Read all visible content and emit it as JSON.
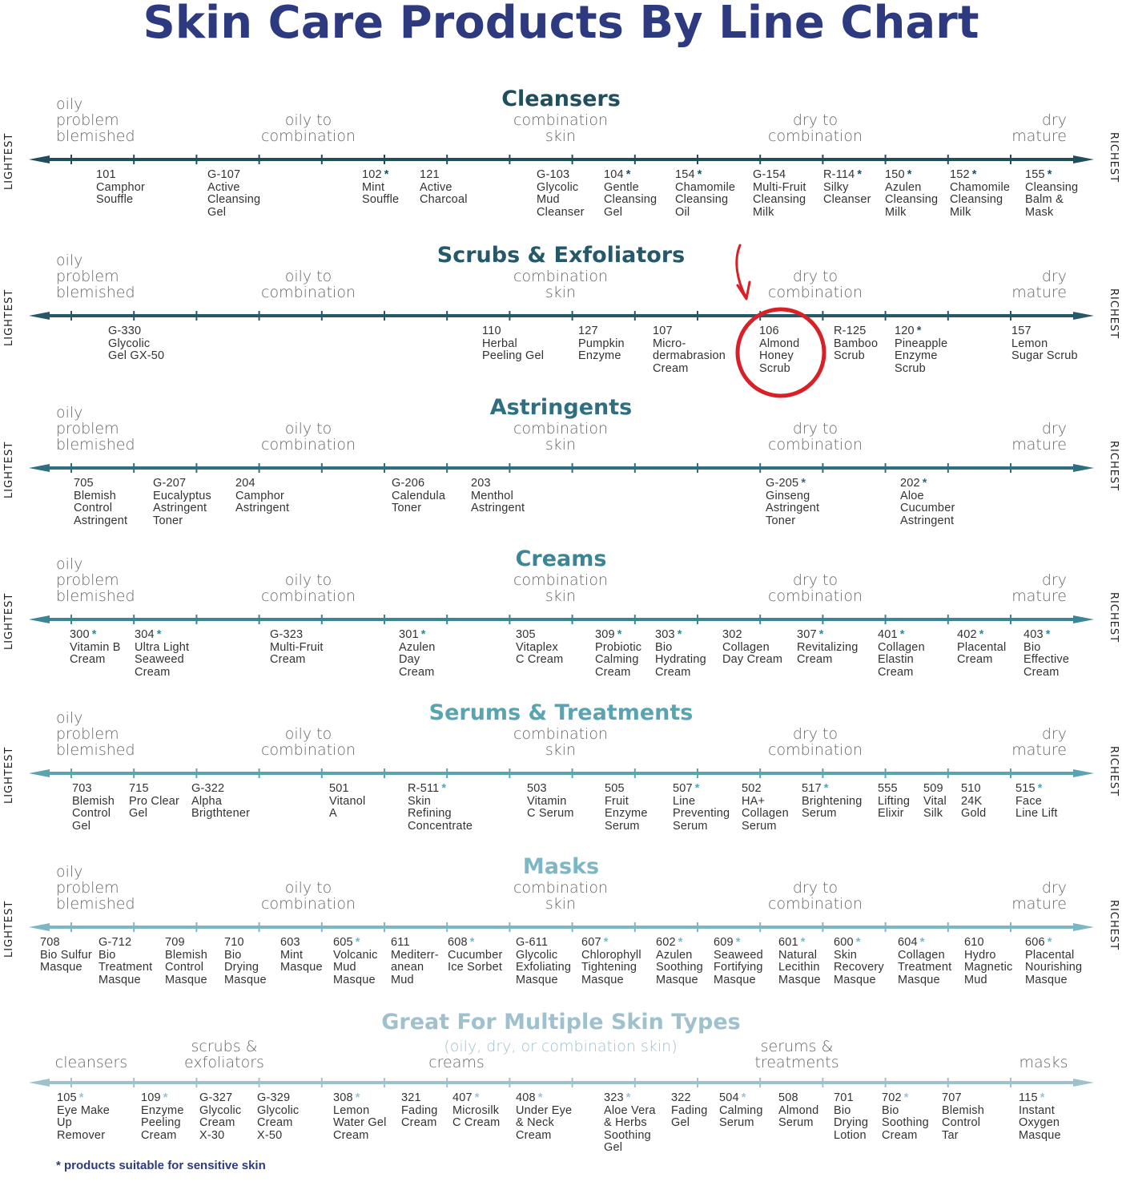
{
  "title": "Skin Care Products By Line Chart",
  "axis_labels": {
    "left": "LIGHTEST",
    "right": "RICHEST"
  },
  "skin_labels": {
    "oily": [
      "oily",
      "problem",
      "blemished"
    ],
    "oily_comb": [
      "oily to",
      "combination"
    ],
    "comb": [
      "combination",
      "skin"
    ],
    "dry_comb": [
      "dry to",
      "combination"
    ],
    "dry": [
      "dry",
      "mature"
    ]
  },
  "sections": [
    {
      "title": "Cleansers",
      "color": "#1f4f5d",
      "products": [
        {
          "code": "101",
          "star": "",
          "lines": [
            "Camphor",
            "Souffle"
          ]
        },
        {
          "code": "G-107",
          "star": "",
          "lines": [
            "Active",
            "Cleansing",
            "Gel"
          ]
        },
        {
          "code": "102",
          "star": "*",
          "lines": [
            "Mint",
            "Souffle"
          ]
        },
        {
          "code": "121",
          "star": "",
          "lines": [
            "Active",
            "Charcoal"
          ]
        },
        {
          "code": "G-103",
          "star": "",
          "lines": [
            "Glycolic",
            "Mud",
            "Cleanser"
          ]
        },
        {
          "code": "104",
          "star": "*",
          "lines": [
            "Gentle",
            "Cleansing",
            "Gel"
          ]
        },
        {
          "code": "154",
          "star": "*",
          "lines": [
            "Chamomile",
            "Cleansing",
            "Oil"
          ]
        },
        {
          "code": "G-154",
          "star": "",
          "lines": [
            "Multi-Fruit",
            "Cleansing",
            "Milk"
          ]
        },
        {
          "code": "R-114",
          "star": "*",
          "lines": [
            "Silky",
            "Cleanser"
          ]
        },
        {
          "code": "150",
          "star": "*",
          "lines": [
            "Azulen",
            "Cleansing",
            "Milk"
          ]
        },
        {
          "code": "152",
          "star": "*",
          "lines": [
            "Chamomile",
            "Cleansing",
            "Milk"
          ]
        },
        {
          "code": "155",
          "star": "*",
          "lines": [
            "Cleansing",
            "Balm &",
            "Mask"
          ]
        }
      ]
    },
    {
      "title": "Scrubs & Exfoliators",
      "color": "#25596a",
      "products": [
        {
          "code": "G-330",
          "star": "",
          "lines": [
            "Glycolic",
            "Gel GX-50"
          ]
        },
        {
          "code": "110",
          "star": "",
          "lines": [
            "Herbal",
            "Peeling Gel"
          ]
        },
        {
          "code": "127",
          "star": "",
          "lines": [
            "Pumpkin",
            "Enzyme"
          ]
        },
        {
          "code": "107",
          "star": "",
          "lines": [
            "Micro-",
            "dermabrasion",
            "Cream"
          ]
        },
        {
          "code": "106",
          "star": "",
          "lines": [
            "Almond",
            "Honey",
            "Scrub"
          ]
        },
        {
          "code": "R-125",
          "star": "",
          "lines": [
            "Bamboo",
            "Scrub"
          ]
        },
        {
          "code": "120",
          "star": "*",
          "lines": [
            "Pineapple",
            "Enzyme",
            "Scrub"
          ]
        },
        {
          "code": "157",
          "star": "",
          "lines": [
            "Lemon",
            "Sugar Scrub"
          ]
        }
      ]
    },
    {
      "title": "Astringents",
      "color": "#2e6f80",
      "products": [
        {
          "code": "705",
          "star": "",
          "lines": [
            "Blemish",
            "Control",
            "Astringent"
          ]
        },
        {
          "code": "G-207",
          "star": "",
          "lines": [
            "Eucalyptus",
            "Astringent",
            "Toner"
          ]
        },
        {
          "code": "204",
          "star": "",
          "lines": [
            "Camphor",
            "Astringent"
          ]
        },
        {
          "code": "G-206",
          "star": "",
          "lines": [
            "Calendula",
            "Toner"
          ]
        },
        {
          "code": "203",
          "star": "",
          "lines": [
            "Menthol",
            "Astringent"
          ]
        },
        {
          "code": "G-205",
          "star": "*",
          "lines": [
            "Ginseng",
            "Astringent",
            "Toner"
          ]
        },
        {
          "code": "202",
          "star": "*",
          "lines": [
            "Aloe",
            "Cucumber",
            "Astringent"
          ]
        }
      ]
    },
    {
      "title": "Creams",
      "color": "#3b8595",
      "products": [
        {
          "code": "300",
          "star": "*",
          "lines": [
            "Vitamin B",
            "Cream"
          ]
        },
        {
          "code": "304",
          "star": "*",
          "lines": [
            "Ultra Light",
            "Seaweed",
            "Cream"
          ]
        },
        {
          "code": "G-323",
          "star": "",
          "lines": [
            "Multi-Fruit",
            "Cream"
          ]
        },
        {
          "code": "301",
          "star": "*",
          "lines": [
            "Azulen",
            "Day",
            "Cream"
          ]
        },
        {
          "code": "305",
          "star": "",
          "lines": [
            "Vitaplex",
            "C Cream"
          ]
        },
        {
          "code": "309",
          "star": "*",
          "lines": [
            "Probiotic",
            "Calming",
            "Cream"
          ]
        },
        {
          "code": "303",
          "star": "*",
          "lines": [
            "Bio",
            "Hydrating",
            "Cream"
          ]
        },
        {
          "code": "302",
          "star": "",
          "lines": [
            "Collagen",
            "Day Cream"
          ]
        },
        {
          "code": "307",
          "star": "*",
          "lines": [
            "Revitalizing",
            "Cream"
          ]
        },
        {
          "code": "401",
          "star": "*",
          "lines": [
            "Collagen",
            "Elastin",
            "Cream"
          ]
        },
        {
          "code": "402",
          "star": "*",
          "lines": [
            "Placental",
            "Cream"
          ]
        },
        {
          "code": "403",
          "star": "*",
          "lines": [
            "Bio",
            "Effective",
            "Cream"
          ]
        }
      ]
    },
    {
      "title": "Serums & Treatments",
      "color": "#5aa3b1",
      "products": [
        {
          "code": "703",
          "star": "",
          "lines": [
            "Blemish",
            "Control",
            "Gel"
          ]
        },
        {
          "code": "715",
          "star": "",
          "lines": [
            "Pro Clear",
            "Gel"
          ]
        },
        {
          "code": "G-322",
          "star": "",
          "lines": [
            "Alpha",
            "Brigthtener"
          ]
        },
        {
          "code": "501",
          "star": "",
          "lines": [
            "Vitanol",
            "A"
          ]
        },
        {
          "code": "R-511",
          "star": "*",
          "lines": [
            "Skin",
            "Refining",
            "Concentrate"
          ]
        },
        {
          "code": "503",
          "star": "",
          "lines": [
            "Vitamin",
            "C Serum"
          ]
        },
        {
          "code": "505",
          "star": "",
          "lines": [
            "Fruit",
            "Enzyme",
            "Serum"
          ]
        },
        {
          "code": "507",
          "star": "*",
          "lines": [
            "Line",
            "Preventing",
            "Serum"
          ]
        },
        {
          "code": "502",
          "star": "",
          "lines": [
            "HA+",
            "Collagen",
            "Serum"
          ]
        },
        {
          "code": "517",
          "star": "*",
          "lines": [
            "Brightening",
            "Serum"
          ]
        },
        {
          "code": "555",
          "star": "",
          "lines": [
            "Lifting",
            "Elixir"
          ]
        },
        {
          "code": "509",
          "star": "",
          "lines": [
            "Vital",
            "Silk"
          ]
        },
        {
          "code": "510",
          "star": "",
          "lines": [
            "24K",
            "Gold"
          ]
        },
        {
          "code": "515",
          "star": "*",
          "lines": [
            "Face",
            "Line Lift"
          ]
        }
      ]
    },
    {
      "title": "Masks",
      "color": "#7db6c5",
      "products": [
        {
          "code": "708",
          "star": "",
          "lines": [
            "Bio Sulfur",
            "Masque"
          ]
        },
        {
          "code": "G-712",
          "star": "",
          "lines": [
            "Bio",
            "Treatment",
            "Masque"
          ]
        },
        {
          "code": "709",
          "star": "",
          "lines": [
            "Blemish",
            "Control",
            "Masque"
          ]
        },
        {
          "code": "710",
          "star": "",
          "lines": [
            "Bio",
            "Drying",
            "Masque"
          ]
        },
        {
          "code": "603",
          "star": "",
          "lines": [
            "Mint",
            "Masque"
          ]
        },
        {
          "code": "605",
          "star": "*",
          "lines": [
            "Volcanic",
            "Mud",
            "Masque"
          ]
        },
        {
          "code": "611",
          "star": "",
          "lines": [
            "Mediterr-",
            "anean",
            "Mud"
          ]
        },
        {
          "code": "608",
          "star": "*",
          "lines": [
            "Cucumber",
            "Ice Sorbet"
          ]
        },
        {
          "code": "G-611",
          "star": "",
          "lines": [
            "Glycolic",
            "Exfoliating",
            "Masque"
          ]
        },
        {
          "code": "607",
          "star": "*",
          "lines": [
            "Chlorophyll",
            "Tightening",
            "Masque"
          ]
        },
        {
          "code": "602",
          "star": "*",
          "lines": [
            "Azulen",
            "Soothing",
            "Masque"
          ]
        },
        {
          "code": "609",
          "star": "*",
          "lines": [
            "Seaweed",
            "Fortifying",
            "Masque"
          ]
        },
        {
          "code": "601",
          "star": "*",
          "lines": [
            "Natural",
            "Lecithin",
            "Masque"
          ]
        },
        {
          "code": "600",
          "star": "*",
          "lines": [
            "Skin",
            "Recovery",
            "Masque"
          ]
        },
        {
          "code": "604",
          "star": "*",
          "lines": [
            "Collagen",
            "Treatment",
            "Masque"
          ]
        },
        {
          "code": "610",
          "star": "",
          "lines": [
            "Hydro",
            "Magnetic",
            "Mud"
          ]
        },
        {
          "code": "606",
          "star": "*",
          "lines": [
            "Placental",
            "Nourishing",
            "Masque"
          ]
        }
      ]
    },
    {
      "title": "Great For Multiple Skin Types",
      "subtitle": "(oily, dry, or combination skin)",
      "color": "#9fc0cd",
      "categories": {
        "cleansers": [
          "cleansers"
        ],
        "scrubs": [
          "scrubs &",
          "exfoliators"
        ],
        "creams": [
          "creams"
        ],
        "serums": [
          "serums &",
          "treatments"
        ],
        "masks": [
          "masks"
        ]
      },
      "products": [
        {
          "code": "105",
          "star": "*",
          "lines": [
            "Eye Make",
            "Up",
            "Remover"
          ]
        },
        {
          "code": "109",
          "star": "*",
          "lines": [
            "Enzyme",
            "Peeling",
            "Cream"
          ]
        },
        {
          "code": "G-327",
          "star": "",
          "lines": [
            "Glycolic",
            "Cream",
            "X-30"
          ]
        },
        {
          "code": "G-329",
          "star": "",
          "lines": [
            "Glycolic",
            "Cream",
            "X-50"
          ]
        },
        {
          "code": "308",
          "star": "*",
          "lines": [
            "Lemon",
            "Water Gel",
            "Cream"
          ]
        },
        {
          "code": "321",
          "star": "",
          "lines": [
            "Fading",
            "Cream"
          ]
        },
        {
          "code": "407",
          "star": "*",
          "lines": [
            "Microsilk",
            "C Cream"
          ]
        },
        {
          "code": "408",
          "star": "*",
          "lines": [
            "Under Eye",
            "& Neck",
            "Cream"
          ]
        },
        {
          "code": "323",
          "star": "*",
          "lines": [
            "Aloe Vera",
            "& Herbs",
            "Soothing",
            "Gel"
          ]
        },
        {
          "code": "322",
          "star": "",
          "lines": [
            "Fading",
            "Gel"
          ]
        },
        {
          "code": "504",
          "star": "*",
          "lines": [
            "Calming",
            "Serum"
          ]
        },
        {
          "code": "508",
          "star": "",
          "lines": [
            "Almond",
            "Serum"
          ]
        },
        {
          "code": "701",
          "star": "",
          "lines": [
            "Bio",
            "Drying",
            "Lotion"
          ]
        },
        {
          "code": "702",
          "star": "*",
          "lines": [
            "Bio",
            "Soothing",
            "Cream"
          ]
        },
        {
          "code": "707",
          "star": "",
          "lines": [
            "Blemish",
            "Control",
            "Tar"
          ]
        },
        {
          "code": "115",
          "star": "*",
          "lines": [
            "Instant",
            "Oxygen",
            "Masque"
          ]
        }
      ]
    }
  ],
  "footnote": "* products suitable for sensitive skin",
  "annotation": {
    "color": "#d92027",
    "highlighted": "106",
    "icons": [
      "arrow-down-icon",
      "circle-highlight"
    ]
  }
}
